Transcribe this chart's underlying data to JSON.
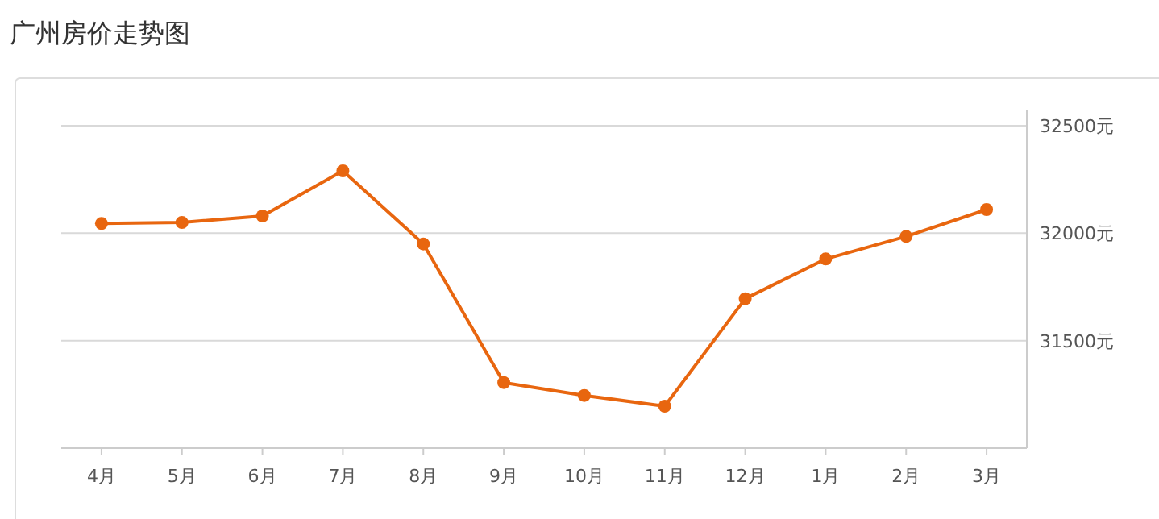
{
  "chart_data": {
    "type": "line",
    "title": "广州房价走势图",
    "categories": [
      "4月",
      "5月",
      "6月",
      "7月",
      "8月",
      "9月",
      "10月",
      "11月",
      "12月",
      "1月",
      "2月",
      "3月"
    ],
    "series": [
      {
        "color": "#e8660f",
        "values": [
          32045,
          32050,
          32080,
          32290,
          31950,
          31305,
          31245,
          31195,
          31695,
          31880,
          31985,
          32110
        ]
      }
    ],
    "ylim": [
      31000,
      32500
    ],
    "yticks": [
      {
        "value": 31500,
        "label": "31500元"
      },
      {
        "value": 32000,
        "label": "32000元"
      },
      {
        "value": 32500,
        "label": "32500元"
      }
    ],
    "grid": "y",
    "marker": "circle",
    "line_style": "solid"
  }
}
